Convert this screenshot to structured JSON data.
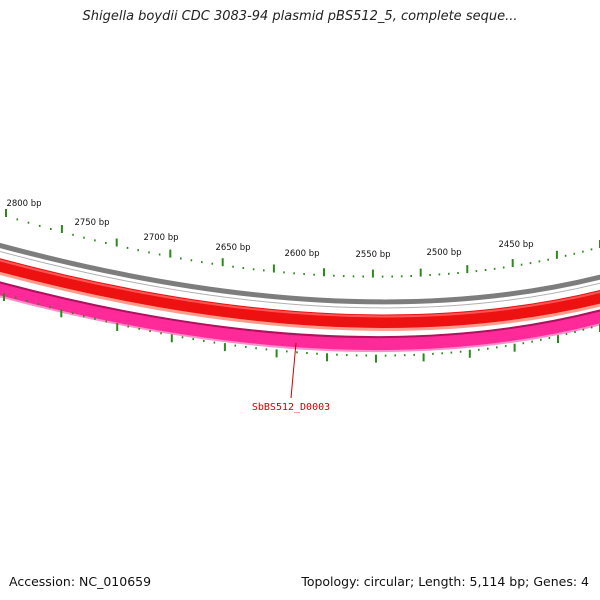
{
  "title": "Shigella boydii CDC 3083-94 plasmid pBS512_5, complete seque...",
  "footer": {
    "accession": "Accession: NC_010659",
    "summary": "Topology: circular; Length: 5,114 bp; Genes: 4"
  },
  "map": {
    "ruler_labels": [
      "2800 bp",
      "2750 bp",
      "2700 bp",
      "2650 bp",
      "2600 bp",
      "2550 bp",
      "2500 bp",
      "2450 bp"
    ],
    "gene_label": "SbBS512_D0003"
  },
  "colors": {
    "tick": "#2a8a1a",
    "backbone": "#888888",
    "track_red": "#ee1111",
    "track_pink": "#ff2a99",
    "gene_label": "#cc0000"
  }
}
